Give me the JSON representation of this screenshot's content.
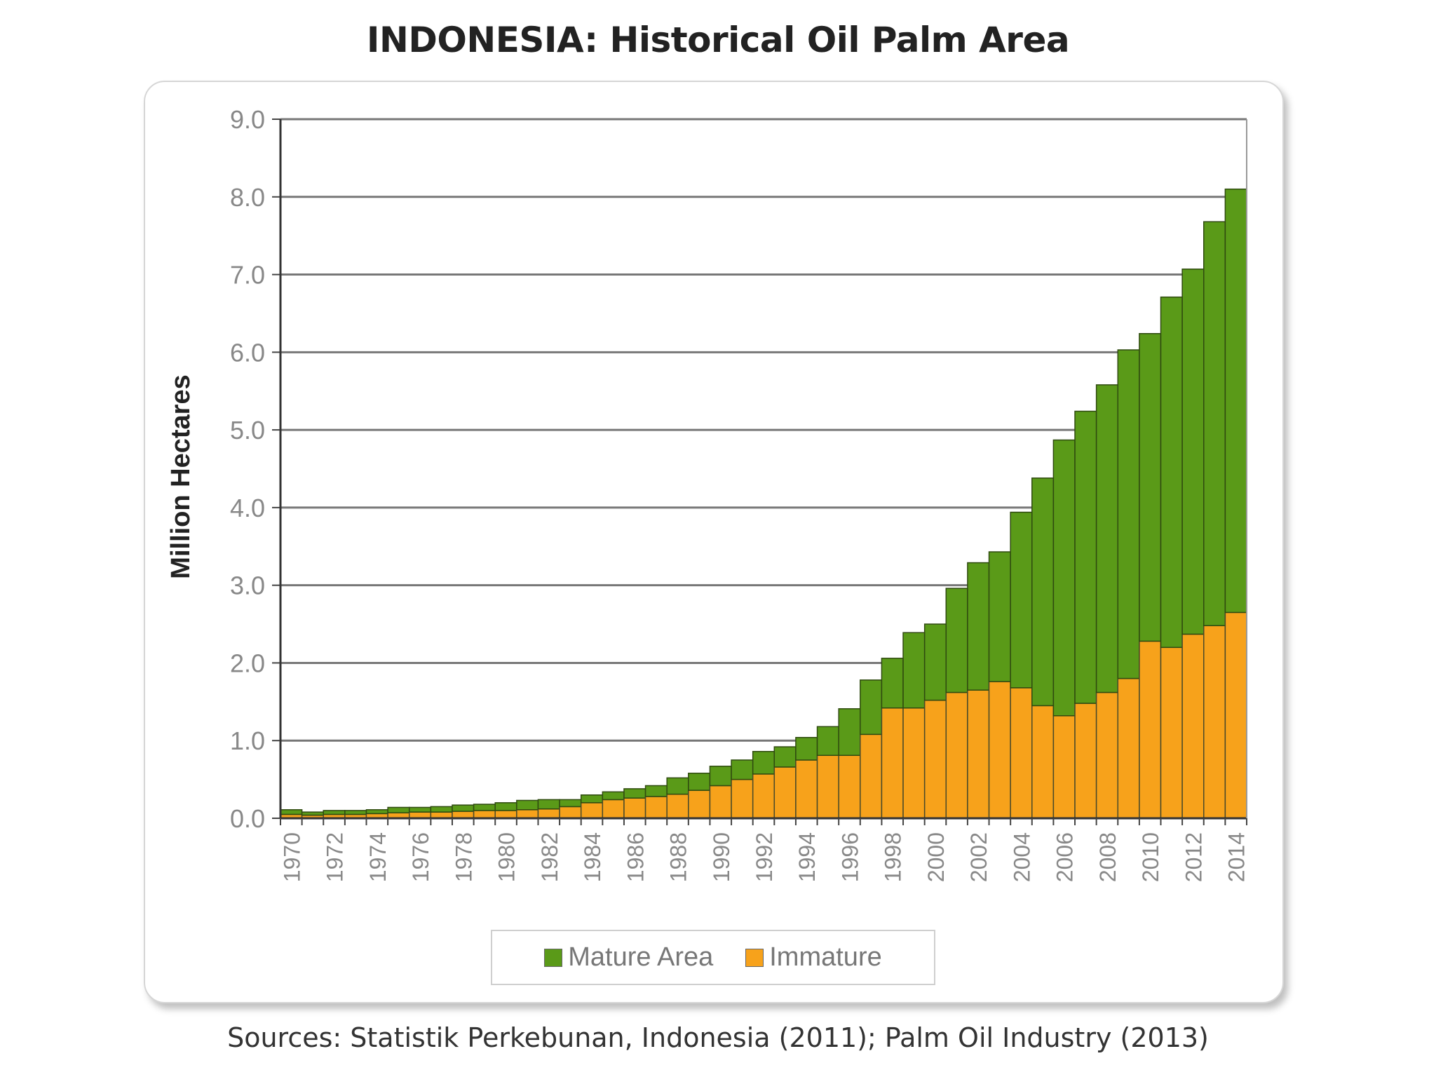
{
  "chart_data": {
    "type": "bar",
    "stacked": true,
    "title": "INDONESIA: Historical Oil Palm Area",
    "ylabel": "Million Hectares",
    "ylim": [
      0,
      9
    ],
    "yticks": [
      "0.0",
      "1.0",
      "2.0",
      "3.0",
      "4.0",
      "5.0",
      "6.0",
      "7.0",
      "8.0",
      "9.0"
    ],
    "xtick_labels": [
      "1970",
      "1972",
      "1974",
      "1976",
      "1978",
      "1980",
      "1982",
      "1984",
      "1986",
      "1988",
      "1990",
      "1992",
      "1994",
      "1996",
      "1998",
      "2000",
      "2002",
      "2004",
      "2006",
      "2008",
      "2010",
      "2012",
      "2014"
    ],
    "grid": true,
    "legend_position": "bottom",
    "categories": [
      "1970",
      "1971",
      "1972",
      "1973",
      "1974",
      "1975",
      "1976",
      "1977",
      "1978",
      "1979",
      "1980",
      "1981",
      "1982",
      "1983",
      "1984",
      "1985",
      "1986",
      "1987",
      "1988",
      "1989",
      "1990",
      "1991",
      "1992",
      "1993",
      "1994",
      "1995",
      "1996",
      "1997",
      "1998",
      "1999",
      "2000",
      "2001",
      "2002",
      "2003",
      "2004",
      "2005",
      "2006",
      "2007",
      "2008",
      "2009",
      "2010",
      "2011",
      "2012",
      "2013",
      "2014"
    ],
    "series": [
      {
        "name": "Immature",
        "color": "#f7a21b",
        "values": [
          0.05,
          0.04,
          0.05,
          0.05,
          0.06,
          0.07,
          0.08,
          0.08,
          0.09,
          0.1,
          0.1,
          0.11,
          0.12,
          0.15,
          0.2,
          0.24,
          0.26,
          0.28,
          0.31,
          0.36,
          0.42,
          0.5,
          0.57,
          0.66,
          0.75,
          0.81,
          0.81,
          1.08,
          1.42,
          1.42,
          1.52,
          1.62,
          1.65,
          1.76,
          1.68,
          1.45,
          1.32,
          1.48,
          1.62,
          1.8,
          2.28,
          2.2,
          2.37,
          2.48,
          2.65
        ]
      },
      {
        "name": "Mature Area",
        "color": "#5a9a18",
        "values": [
          0.06,
          0.04,
          0.05,
          0.05,
          0.05,
          0.07,
          0.06,
          0.07,
          0.08,
          0.08,
          0.1,
          0.12,
          0.12,
          0.09,
          0.1,
          0.1,
          0.12,
          0.14,
          0.21,
          0.22,
          0.25,
          0.25,
          0.29,
          0.26,
          0.29,
          0.37,
          0.6,
          0.7,
          0.64,
          0.97,
          0.98,
          1.34,
          1.64,
          1.67,
          2.26,
          2.93,
          3.55,
          3.76,
          3.96,
          4.23,
          3.96,
          4.51,
          4.7,
          5.2,
          5.45
        ]
      }
    ],
    "sources": "Sources: Statistik Perkebunan, Indonesia (2011); Palm Oil Industry (2013)"
  }
}
